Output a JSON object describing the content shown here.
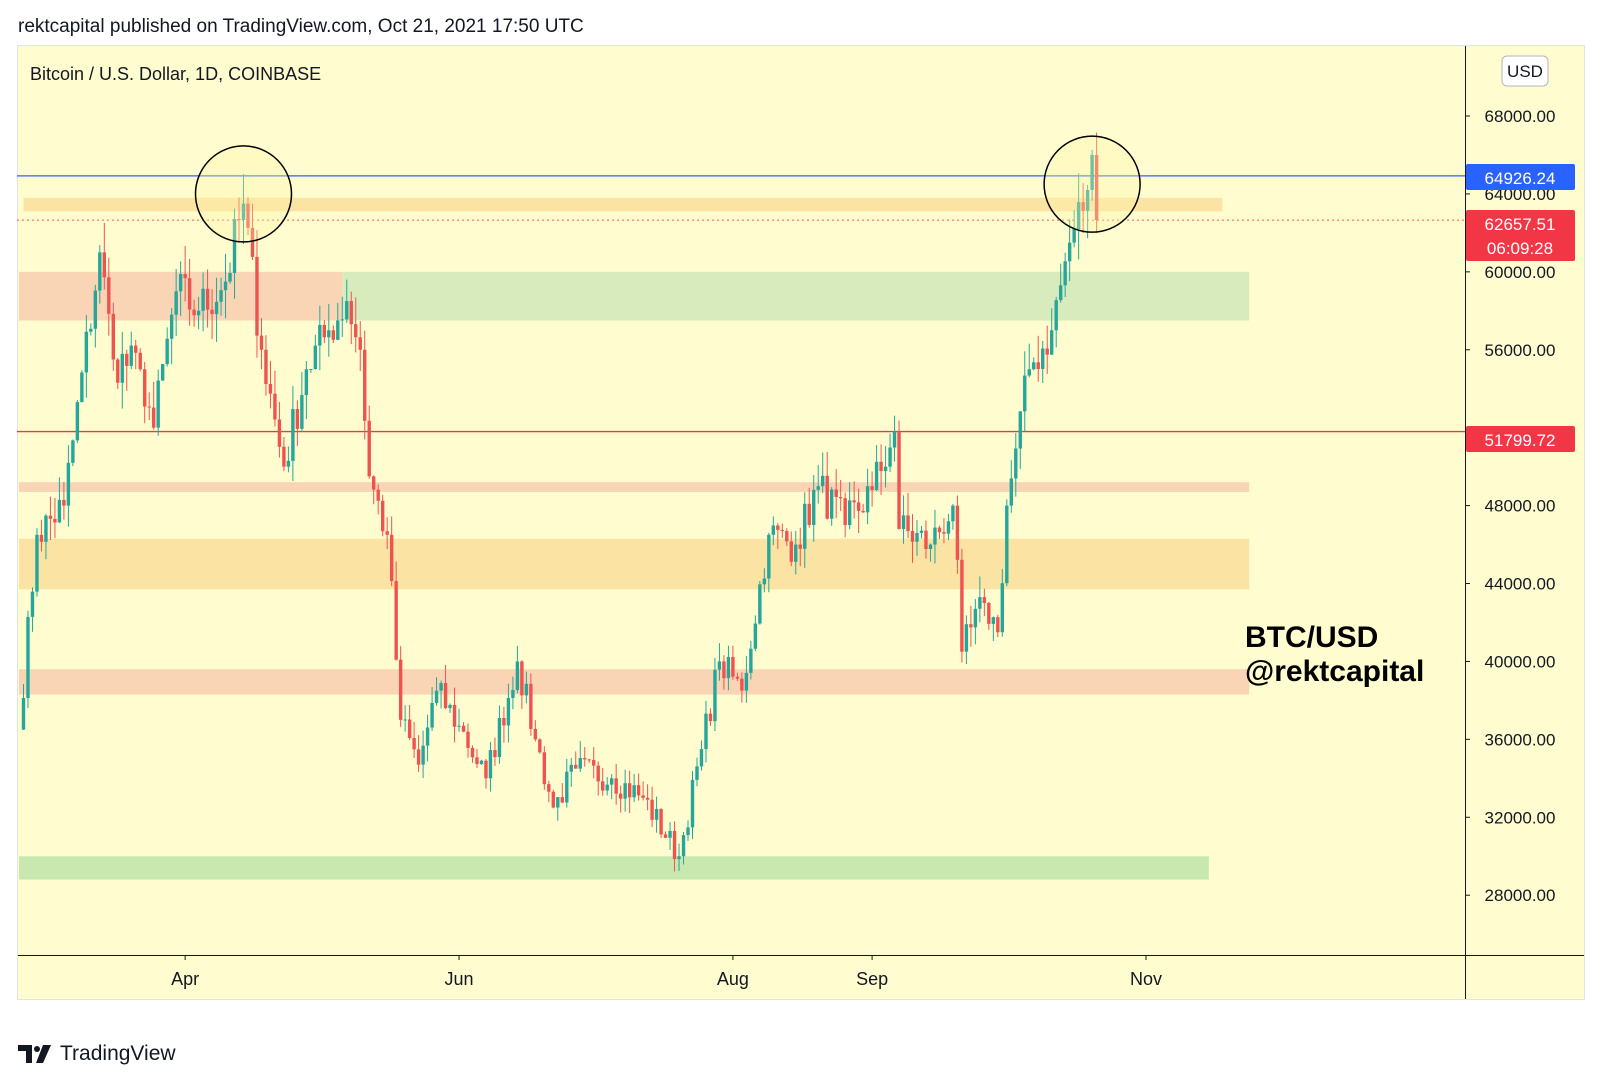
{
  "header": {
    "publish_line": "rektcapital published on TradingView.com, Oct 21, 2021 17:50 UTC"
  },
  "chart": {
    "symbol_title": "Bitcoin / U.S. Dollar, 1D, COINBASE",
    "currency_button": "USD",
    "watermark_line1": "BTC/USD",
    "watermark_line2": "@rektcapital",
    "background_color": "#fffdd0",
    "up_color": "#26a69a",
    "down_color": "#ef5350"
  },
  "price_labels": {
    "blue_level": "64926.24",
    "last_price": "62657.51",
    "countdown": "06:09:28",
    "red_level": "51799.72"
  },
  "footer": {
    "brand": "TradingView"
  },
  "chart_data": {
    "type": "candlestick",
    "title": "Bitcoin / U.S. Dollar, 1D, COINBASE",
    "y_axis": {
      "ticks": [
        "68000.00",
        "64000.00",
        "60000.00",
        "56000.00",
        "48000.00",
        "44000.00",
        "40000.00",
        "36000.00",
        "32000.00",
        "28000.00"
      ],
      "range": [
        25000,
        70000
      ],
      "position": "right"
    },
    "x_axis": {
      "ticks": [
        "Apr",
        "Jun",
        "Aug",
        "Sep",
        "Nov"
      ]
    },
    "horizontal_lines": [
      {
        "value": 64926.24,
        "color": "#2962ff",
        "style": "solid"
      },
      {
        "value": 51799.72,
        "color": "#f23645",
        "style": "solid"
      },
      {
        "value": 62657.51,
        "color": "#ef5350",
        "style": "dotted"
      }
    ],
    "zones": [
      {
        "from_date": "2021-02-24",
        "to_date": "2021-11-18",
        "low": 63100,
        "high": 63800,
        "color": "#fbe3a4"
      },
      {
        "from_date": "2021-02-23",
        "to_date": "2021-05-06",
        "low": 57500,
        "high": 60000,
        "color": "#f9d5b5"
      },
      {
        "from_date": "2021-05-06",
        "to_date": "2021-11-24",
        "low": 57500,
        "high": 60000,
        "color": "#d8ebbc"
      },
      {
        "from_date": "2021-02-23",
        "to_date": "2021-11-24",
        "low": 48700,
        "high": 49200,
        "color": "#f9d5b5"
      },
      {
        "from_date": "2021-02-23",
        "to_date": "2021-11-24",
        "low": 43700,
        "high": 46300,
        "color": "#fbe3a4"
      },
      {
        "from_date": "2021-02-23",
        "to_date": "2021-11-24",
        "low": 38300,
        "high": 39600,
        "color": "#f9d5b5"
      },
      {
        "from_date": "2021-02-23",
        "to_date": "2021-11-15",
        "low": 28800,
        "high": 30000,
        "color": "#c9e8b0"
      }
    ],
    "circles": [
      {
        "date": "2021-04-14",
        "price": 64000
      },
      {
        "date": "2021-10-20",
        "price": 64500
      }
    ],
    "series_anchors": [
      [
        "2021-02-23",
        36500
      ],
      [
        "2021-02-27",
        46500
      ],
      [
        "2021-03-05",
        48000
      ],
      [
        "2021-03-13",
        61000
      ],
      [
        "2021-03-16",
        55500
      ],
      [
        "2021-03-22",
        55000
      ],
      [
        "2021-03-25",
        52000
      ],
      [
        "2021-03-30",
        59000
      ],
      [
        "2021-04-04",
        58000
      ],
      [
        "2021-04-10",
        59500
      ],
      [
        "2021-04-14",
        63500
      ],
      [
        "2021-04-18",
        56000
      ],
      [
        "2021-04-23",
        50000
      ],
      [
        "2021-04-28",
        55000
      ],
      [
        "2021-05-03",
        57000
      ],
      [
        "2021-05-07",
        58500
      ],
      [
        "2021-05-10",
        56000
      ],
      [
        "2021-05-12",
        49500
      ],
      [
        "2021-05-16",
        46500
      ],
      [
        "2021-05-19",
        37000
      ],
      [
        "2021-05-23",
        34700
      ],
      [
        "2021-05-27",
        38500
      ],
      [
        "2021-06-01",
        36700
      ],
      [
        "2021-06-07",
        34000
      ],
      [
        "2021-06-14",
        40000
      ],
      [
        "2021-06-18",
        36000
      ],
      [
        "2021-06-22",
        32500
      ],
      [
        "2021-06-27",
        34500
      ],
      [
        "2021-07-05",
        34000
      ],
      [
        "2021-07-12",
        33000
      ],
      [
        "2021-07-20",
        30000
      ],
      [
        "2021-07-25",
        35500
      ],
      [
        "2021-07-29",
        40000
      ],
      [
        "2021-08-03",
        38500
      ],
      [
        "2021-08-09",
        46500
      ],
      [
        "2021-08-15",
        46000
      ],
      [
        "2021-08-20",
        49000
      ],
      [
        "2021-08-26",
        47000
      ],
      [
        "2021-09-01",
        48800
      ],
      [
        "2021-09-06",
        51800
      ],
      [
        "2021-09-07",
        46800
      ],
      [
        "2021-09-14",
        46000
      ],
      [
        "2021-09-19",
        48000
      ],
      [
        "2021-09-21",
        40500
      ],
      [
        "2021-09-26",
        43000
      ],
      [
        "2021-09-29",
        41500
      ],
      [
        "2021-10-01",
        48000
      ],
      [
        "2021-10-06",
        55000
      ],
      [
        "2021-10-11",
        57000
      ],
      [
        "2021-10-15",
        61500
      ],
      [
        "2021-10-19",
        64200
      ],
      [
        "2021-10-20",
        66000
      ],
      [
        "2021-10-21",
        62657.51
      ]
    ]
  }
}
